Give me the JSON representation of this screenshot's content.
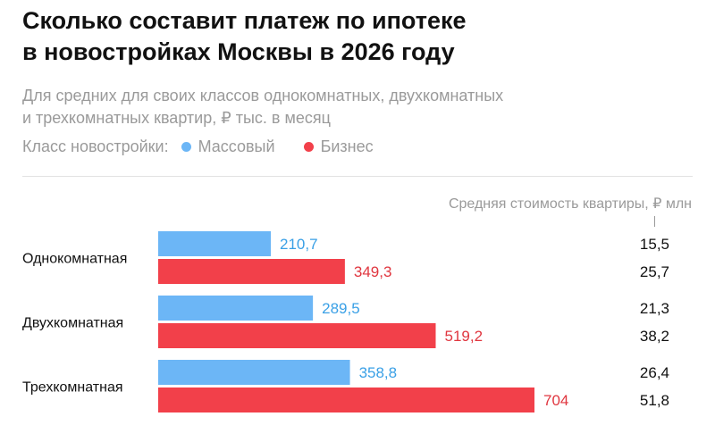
{
  "title_lines": [
    "Сколько составит платеж по ипотеке",
    "в новостройках Москвы в 2026 году"
  ],
  "subtitle_lines": [
    "Для средних для своих классов однокомнатных, двухкомнатных",
    "и трехкомнатных квартир, ₽ тыс. в месяц"
  ],
  "legend": {
    "label": "Класс новостройки:",
    "items": [
      {
        "name": "Массовый",
        "color": "#6cb6f6"
      },
      {
        "name": "Бизнес",
        "color": "#f2404a"
      }
    ]
  },
  "right_column_header": "Средняя стоимость квартиры, ₽ млн",
  "chart_data": {
    "type": "bar",
    "orientation": "horizontal",
    "categories": [
      "Однокомнатная",
      "Двухкомнатная",
      "Трехкомнатная"
    ],
    "series": [
      {
        "name": "Массовый",
        "values": [
          210.7,
          289.5,
          358.8
        ],
        "labels": [
          "210,7",
          "289,5",
          "358,8"
        ],
        "color": "#6cb6f6",
        "label_color": "#3aa0e6",
        "avg_price": [
          "15,5",
          "21,3",
          "26,4"
        ]
      },
      {
        "name": "Бизнес",
        "values": [
          349.3,
          519.2,
          704
        ],
        "labels": [
          "349,3",
          "519,2",
          "704"
        ],
        "color": "#f2404a",
        "label_color": "#e0363f",
        "avg_price": [
          "25,7",
          "38,2",
          "51,8"
        ]
      }
    ],
    "xlim": [
      0,
      704
    ],
    "grid": false,
    "legend_position": "top-left"
  }
}
